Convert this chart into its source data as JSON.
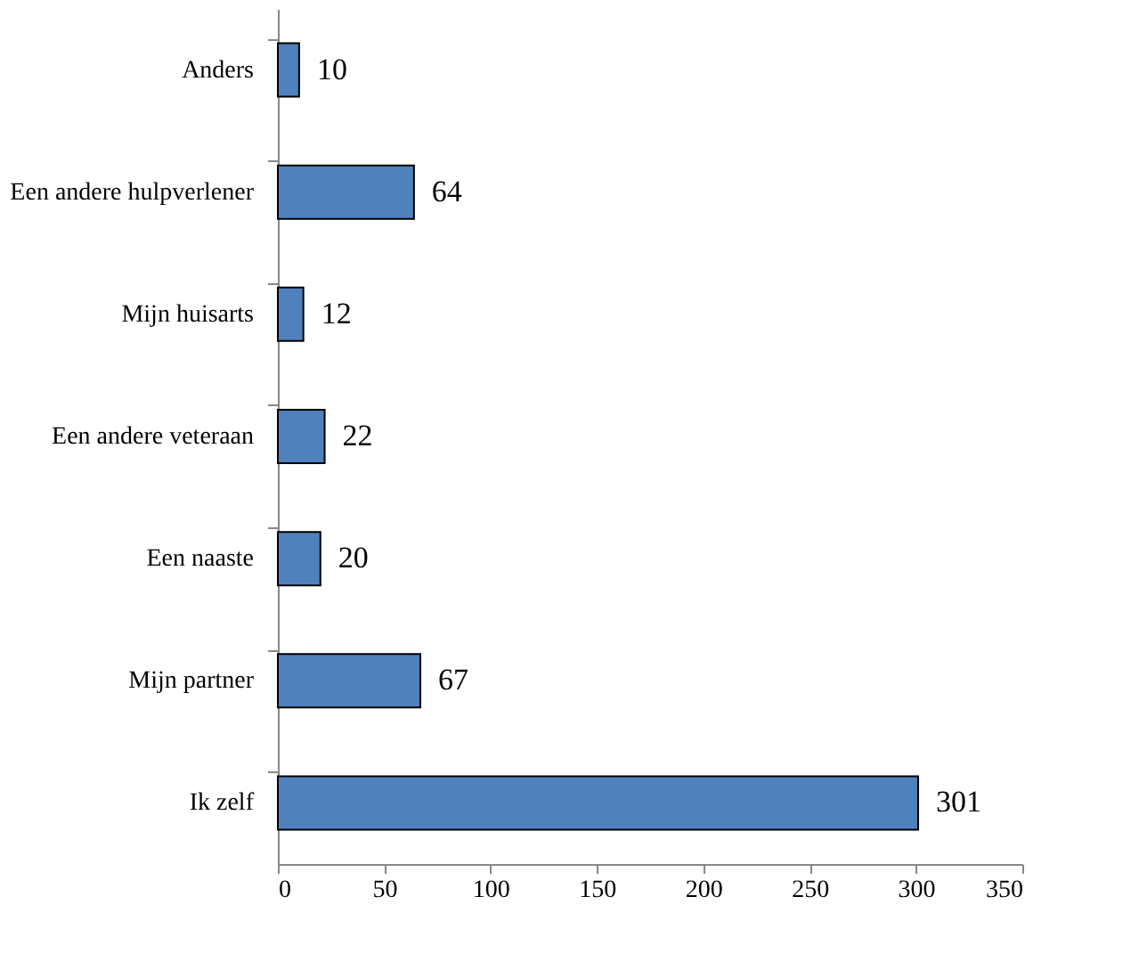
{
  "chart_data": {
    "type": "bar",
    "orientation": "horizontal",
    "categories": [
      "Anders",
      "Een andere hulpverlener",
      "Mijn huisarts",
      "Een andere veteraan",
      "Een naaste",
      "Mijn partner",
      "Ik zelf"
    ],
    "values": [
      10,
      64,
      12,
      22,
      20,
      67,
      301
    ],
    "color": "#4f81bd",
    "xlim": [
      0,
      350
    ],
    "xticks": [
      0,
      50,
      100,
      150,
      200,
      250,
      300,
      350
    ],
    "data_labels": true,
    "grid": false
  }
}
